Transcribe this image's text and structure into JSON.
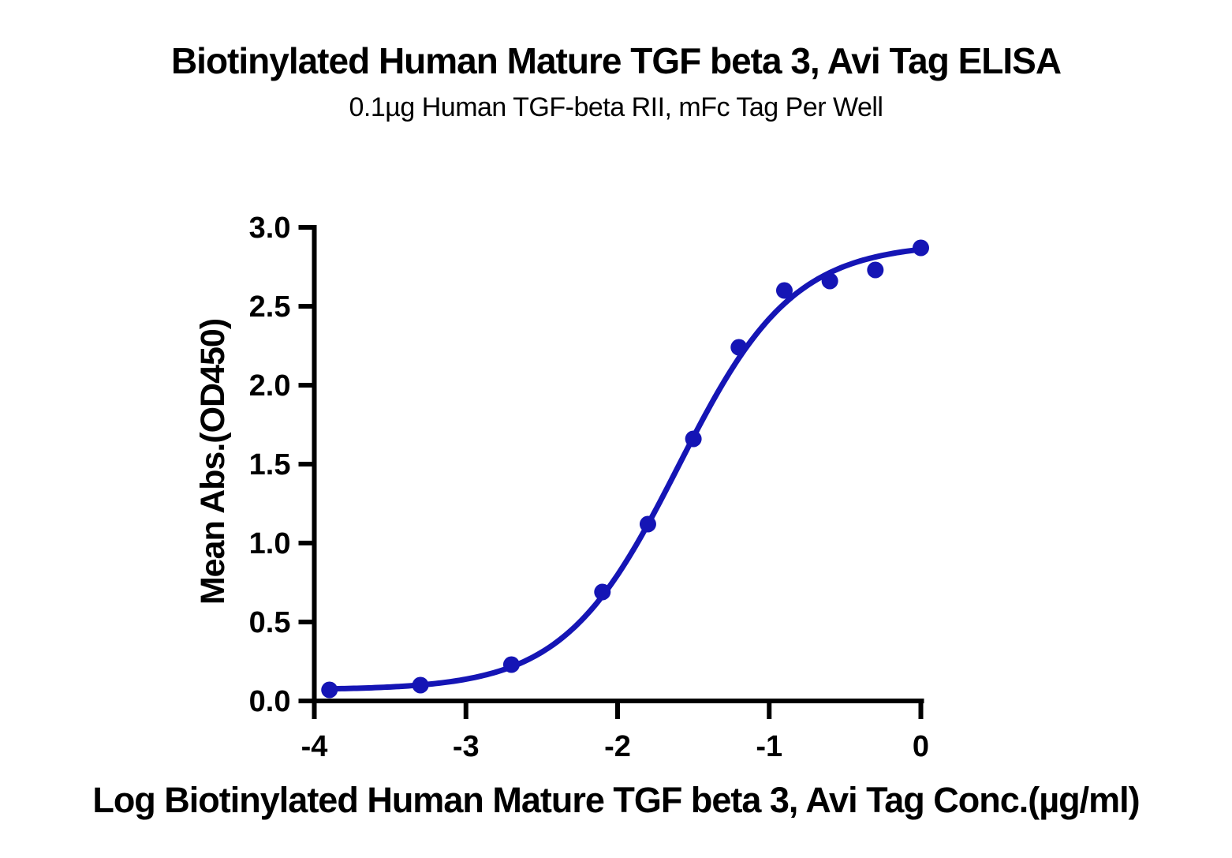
{
  "chart_data": {
    "type": "scatter",
    "title": "Biotinylated Human Mature TGF beta 3, Avi Tag ELISA",
    "subtitle": "0.1µg Human TGF-beta RII, mFc Tag Per Well",
    "xlabel": "Log Biotinylated Human Mature TGF beta 3, Avi Tag Conc.(µg/ml)",
    "ylabel": "Mean Abs.(OD450)",
    "x": [
      -3.9,
      -3.3,
      -2.7,
      -2.1,
      -1.8,
      -1.5,
      -1.2,
      -0.9,
      -0.6,
      -0.3,
      0.0
    ],
    "y": [
      0.07,
      0.1,
      0.23,
      0.69,
      1.12,
      1.66,
      2.24,
      2.6,
      2.66,
      2.73,
      2.87
    ],
    "xlim": [
      -4,
      0
    ],
    "ylim": [
      0,
      3
    ],
    "x_ticks": [
      -4,
      -3,
      -2,
      -1,
      0
    ],
    "x_tick_labels": [
      "-4",
      "-3",
      "-2",
      "-1",
      "0"
    ],
    "y_ticks": [
      0,
      0.5,
      1,
      1.5,
      2,
      2.5,
      3
    ],
    "y_tick_labels": [
      "0.0",
      "0.5",
      "1.0",
      "1.5",
      "2.0",
      "2.5",
      "3.0"
    ],
    "curve_fit": {
      "model": "4PL",
      "bottom": 0.07,
      "top": 2.9,
      "log_ec50": -1.6,
      "hill": 1.15
    },
    "grid": false,
    "legend": "none",
    "point_color": "#1515b5",
    "line_color": "#1515b5",
    "axis_color": "#000000"
  }
}
